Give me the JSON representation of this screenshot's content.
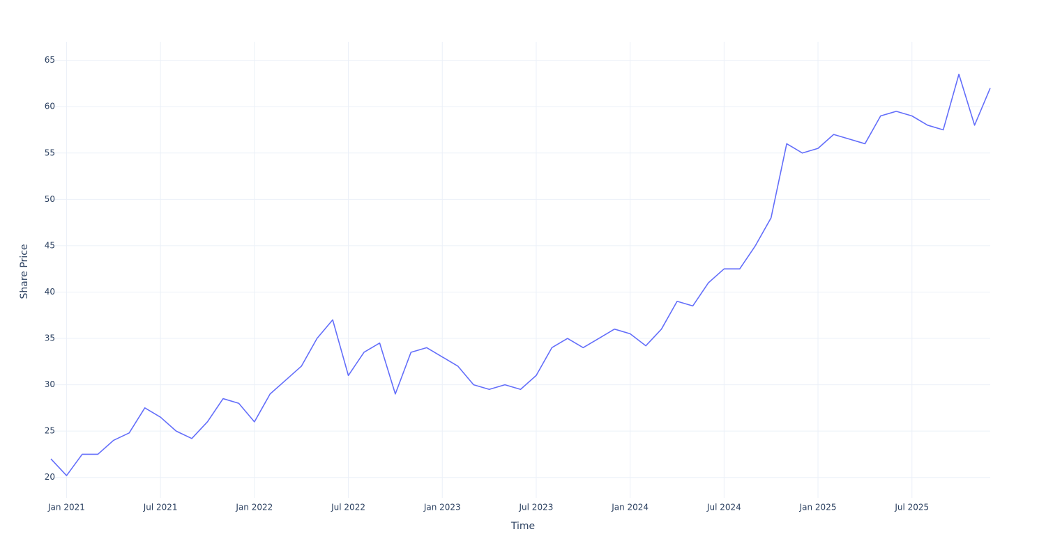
{
  "chart_data": {
    "type": "line",
    "x_label": "Time",
    "y_label": "Share Price",
    "x": [
      "2020-12",
      "2021-01",
      "2021-02",
      "2021-03",
      "2021-04",
      "2021-05",
      "2021-06",
      "2021-07",
      "2021-08",
      "2021-09",
      "2021-10",
      "2021-11",
      "2021-12",
      "2022-01",
      "2022-02",
      "2022-03",
      "2022-04",
      "2022-05",
      "2022-06",
      "2022-07",
      "2022-08",
      "2022-09",
      "2022-10",
      "2022-11",
      "2022-12",
      "2023-01",
      "2023-02",
      "2023-03",
      "2023-04",
      "2023-05",
      "2023-06",
      "2023-07",
      "2023-08",
      "2023-09",
      "2023-10",
      "2023-11",
      "2023-12",
      "2024-01",
      "2024-02",
      "2024-03",
      "2024-04",
      "2024-05",
      "2024-06",
      "2024-07",
      "2024-08",
      "2024-09",
      "2024-10",
      "2024-11",
      "2024-12",
      "2025-01",
      "2025-02",
      "2025-03",
      "2025-04",
      "2025-05",
      "2025-06",
      "2025-07",
      "2025-08",
      "2025-09",
      "2025-10",
      "2025-11",
      "2025-12"
    ],
    "series": [
      {
        "name": "Share Price",
        "color": "#636efa",
        "values": [
          22,
          20.2,
          22.5,
          22.5,
          24,
          24.8,
          27.5,
          26.5,
          25,
          24.2,
          26,
          28.5,
          28,
          26,
          29,
          30.5,
          32,
          35,
          37,
          31,
          33.5,
          34.5,
          29,
          33.5,
          34,
          33,
          32,
          30,
          29.5,
          30,
          29.5,
          31,
          34,
          35,
          34,
          35,
          36,
          35.5,
          34.2,
          36,
          39,
          38.5,
          41,
          42.5,
          42.5,
          45,
          48,
          56,
          55,
          55.5,
          57,
          56.5,
          56,
          59,
          59.5,
          59,
          58,
          57.5,
          63.5,
          58,
          62
        ]
      }
    ],
    "xlim": [
      "2020-12",
      "2025-12"
    ],
    "xticks": [
      {
        "value": "2021-01",
        "label": "Jan 2021"
      },
      {
        "value": "2021-07",
        "label": "Jul 2021"
      },
      {
        "value": "2022-01",
        "label": "Jan 2022"
      },
      {
        "value": "2022-07",
        "label": "Jul 2022"
      },
      {
        "value": "2023-01",
        "label": "Jan 2023"
      },
      {
        "value": "2023-07",
        "label": "Jul 2023"
      },
      {
        "value": "2024-01",
        "label": "Jan 2024"
      },
      {
        "value": "2024-07",
        "label": "Jul 2024"
      },
      {
        "value": "2025-01",
        "label": "Jan 2025"
      },
      {
        "value": "2025-07",
        "label": "Jul 2025"
      }
    ],
    "ylim": [
      17.8,
      67
    ],
    "yticks": [
      20,
      25,
      30,
      35,
      40,
      45,
      50,
      55,
      60,
      65
    ],
    "grid": true
  }
}
